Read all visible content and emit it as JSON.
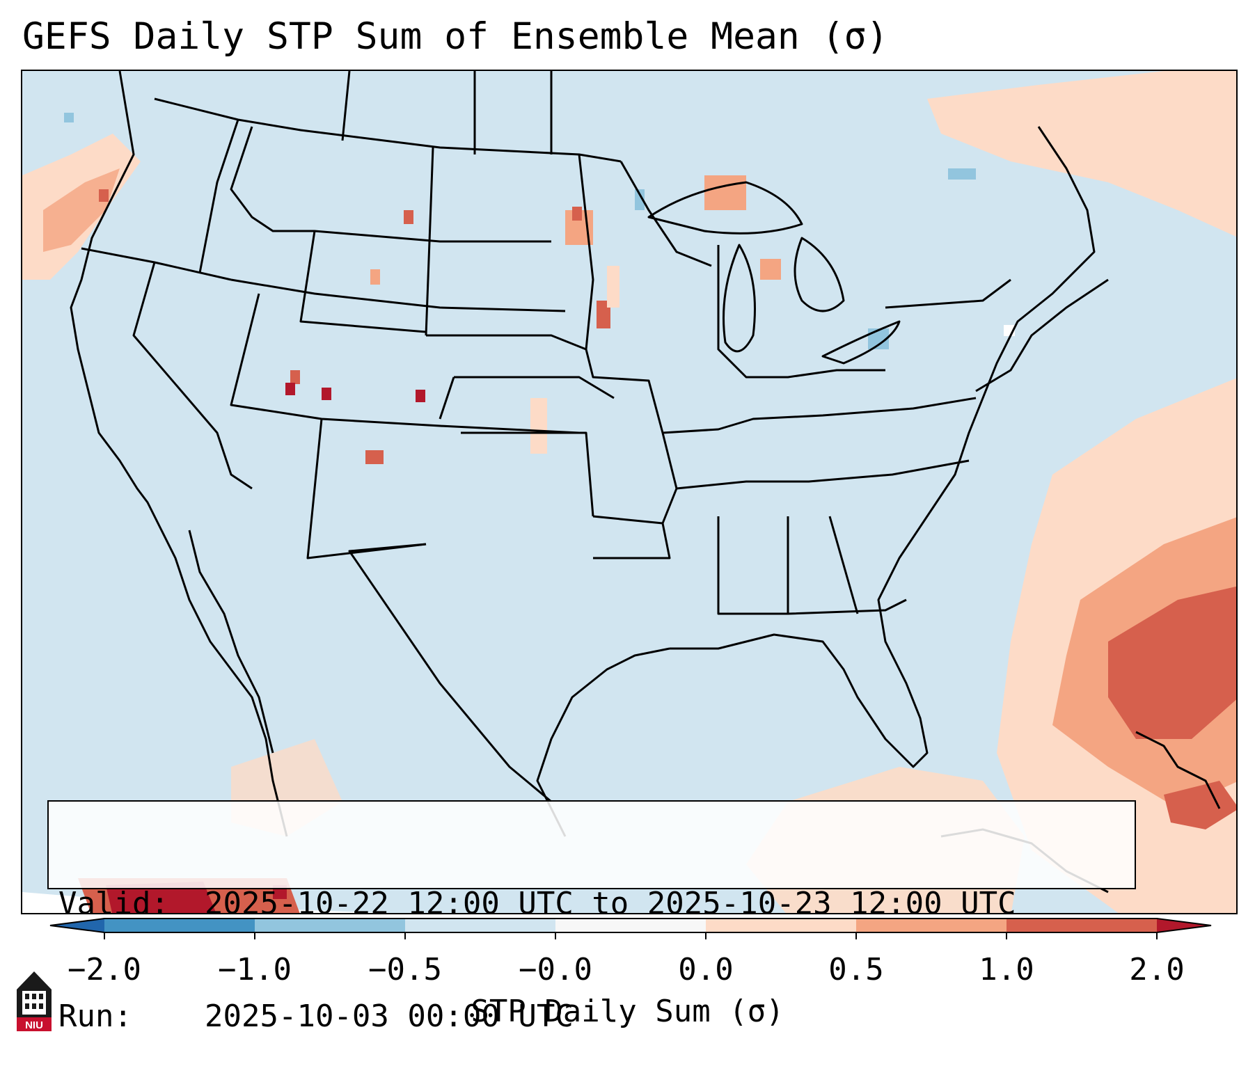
{
  "title": "GEFS Daily STP Sum of Ensemble Mean (σ)",
  "map": {
    "description_region": "CONUS",
    "background_color": "#d1e5f0",
    "border_color": "#000000",
    "anomaly_colors": {
      "light_red": "#fddbc7",
      "mid_red": "#f4a582",
      "red": "#d6604d",
      "dark_red": "#b2182b",
      "light_blue": "#92c5de",
      "blue": "#4393c3"
    }
  },
  "info": {
    "valid_label": "Valid:",
    "valid_value": "2025-10-22 12:00 UTC to 2025-10-23 12:00 UTC",
    "run_label": "Run:",
    "run_value": "2025-10-03 00:00 UTC"
  },
  "colorbar": {
    "label": "STP Daily Sum (σ)",
    "ticks": [
      "−2.0",
      "−1.0",
      "−0.5",
      "−0.0",
      "0.0",
      "0.5",
      "1.0",
      "2.0"
    ],
    "colors": [
      "#2166ac",
      "#4393c3",
      "#92c5de",
      "#d1e5f0",
      "#f7f7f7",
      "#fddbc7",
      "#f4a582",
      "#d6604d",
      "#b2182b"
    ]
  },
  "logo": {
    "text": "NIU",
    "icon": "niu-building-icon"
  }
}
